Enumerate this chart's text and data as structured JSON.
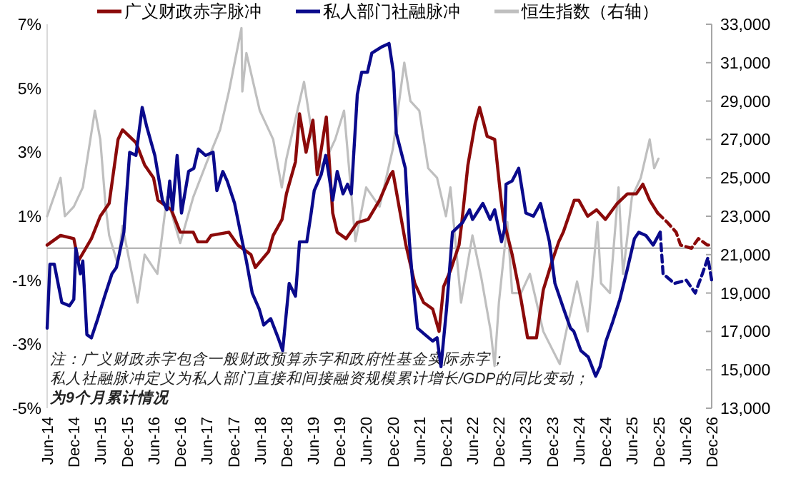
{
  "chart_data": {
    "type": "line",
    "legend": "top",
    "grid": false,
    "xlim": [
      "2014-06",
      "2026-12"
    ],
    "xticks": [
      {
        "value": "2014-06",
        "label": "Jun-14"
      },
      {
        "value": "2014-12",
        "label": "Dec-14"
      },
      {
        "value": "2015-06",
        "label": "Jun-15"
      },
      {
        "value": "2015-12",
        "label": "Dec-15"
      },
      {
        "value": "2016-06",
        "label": "Jun-16"
      },
      {
        "value": "2016-12",
        "label": "Dec-16"
      },
      {
        "value": "2017-06",
        "label": "Jun-17"
      },
      {
        "value": "2017-12",
        "label": "Dec-17"
      },
      {
        "value": "2018-06",
        "label": "Jun-18"
      },
      {
        "value": "2018-12",
        "label": "Dec-18"
      },
      {
        "value": "2019-06",
        "label": "Jun-19"
      },
      {
        "value": "2019-12",
        "label": "Dec-19"
      },
      {
        "value": "2020-06",
        "label": "Jun-20"
      },
      {
        "value": "2020-12",
        "label": "Dec-20"
      },
      {
        "value": "2021-06",
        "label": "Jun-21"
      },
      {
        "value": "2021-12",
        "label": "Dec-21"
      },
      {
        "value": "2022-06",
        "label": "Jun-22"
      },
      {
        "value": "2022-12",
        "label": "Dec-22"
      },
      {
        "value": "2023-06",
        "label": "Jun-23"
      },
      {
        "value": "2023-12",
        "label": "Dec-23"
      },
      {
        "value": "2024-06",
        "label": "Jun-24"
      },
      {
        "value": "2024-12",
        "label": "Dec-24"
      },
      {
        "value": "2025-06",
        "label": "Jun-25"
      },
      {
        "value": "2025-12",
        "label": "Dec-25"
      },
      {
        "value": "2026-06",
        "label": "Jun-26"
      },
      {
        "value": "2026-12",
        "label": "Dec-26"
      }
    ],
    "ylim": [
      -5,
      7
    ],
    "yticks": [
      {
        "value": -5,
        "label": "-5%"
      },
      {
        "value": -3,
        "label": "-3%"
      },
      {
        "value": -1,
        "label": "-1%"
      },
      {
        "value": 1,
        "label": "1%"
      },
      {
        "value": 3,
        "label": "3%"
      },
      {
        "value": 5,
        "label": "5%"
      },
      {
        "value": 7,
        "label": "7%"
      }
    ],
    "y2lim": [
      13000,
      33000
    ],
    "y2ticks": [
      {
        "value": 13000,
        "label": "13,000"
      },
      {
        "value": 15000,
        "label": "15,000"
      },
      {
        "value": 17000,
        "label": "17,000"
      },
      {
        "value": 19000,
        "label": "19,000"
      },
      {
        "value": 21000,
        "label": "21,000"
      },
      {
        "value": 23000,
        "label": "23,000"
      },
      {
        "value": 25000,
        "label": "25,000"
      },
      {
        "value": 27000,
        "label": "27,000"
      },
      {
        "value": 29000,
        "label": "29,000"
      },
      {
        "value": 31000,
        "label": "31,000"
      },
      {
        "value": 33000,
        "label": "33,000"
      }
    ],
    "ref_lines": [
      {
        "axis": "y",
        "value": 0,
        "color": "#a6a6a6"
      }
    ],
    "annotations": [
      "注：广义财政赤字包含一般财政预算赤字和政府性基金实际赤字；",
      "私人社融脉冲定义为私人部门直接和间接融资规模累计增长/GDP的同比变动；",
      "为9个月累计情况"
    ],
    "series": [
      {
        "name": "恒生指数（右轴）",
        "color": "#bfbfbf",
        "axis": "y2",
        "line_style": "solid",
        "x": [
          "2014-06",
          "2014-09",
          "2014-10",
          "2014-12",
          "2015-02",
          "2015-04-25",
          "2015-06",
          "2015-07-08",
          "2015-08",
          "2015-09-29",
          "2015-11",
          "2016-02-12",
          "2016-04",
          "2016-06-27",
          "2016-09",
          "2016-12",
          "2017-03",
          "2017-06",
          "2017-09",
          "2017-11",
          "2018-01-26",
          "2018-02",
          "2018-03",
          "2018-06",
          "2018-09",
          "2018-10-30",
          "2018-12",
          "2019-04",
          "2019-06",
          "2019-08",
          "2019-11",
          "2020-01",
          "2020-03-19",
          "2020-06",
          "2020-09",
          "2020-12",
          "2021-02-18",
          "2021-04",
          "2021-06",
          "2021-08",
          "2021-10",
          "2021-12",
          "2022-01",
          "2022-03-15",
          "2022-06",
          "2022-08",
          "2022-10-05",
          "2022-10-31",
          "2022-11-30",
          "2023-01-27",
          "2023-03",
          "2023-05",
          "2023-07",
          "2023-10",
          "2024-01-22",
          "2024-03",
          "2024-05-20",
          "2024-08",
          "2024-10-07",
          "2024-11",
          "2025-01",
          "2025-03",
          "2025-04",
          "2025-06",
          "2025-08",
          "2025-10",
          "2025-11",
          "2025-11-30"
        ],
        "values": [
          23000,
          25000,
          23000,
          23500,
          24500,
          28500,
          27000,
          23500,
          22000,
          20500,
          22500,
          18500,
          21000,
          20000,
          24000,
          21600,
          24000,
          25800,
          27500,
          29500,
          32800,
          29500,
          31500,
          28500,
          27000,
          24500,
          26000,
          30000,
          27000,
          25500,
          27000,
          28500,
          21700,
          24500,
          23500,
          26500,
          31000,
          29000,
          28500,
          25500,
          25000,
          23000,
          24500,
          18500,
          22000,
          19800,
          17000,
          15200,
          18500,
          22700,
          19000,
          19000,
          20000,
          17000,
          15300,
          16800,
          19600,
          17000,
          22700,
          19500,
          19000,
          24500,
          20000,
          24000,
          25000,
          27000,
          25500,
          26000
        ]
      },
      {
        "name": "广义财政赤字脉冲",
        "color": "#8b0a0a",
        "line_style": "solid",
        "x": [
          "2014-06",
          "2014-09",
          "2014-12",
          "2015-01",
          "2015-04",
          "2015-06",
          "2015-08",
          "2015-10",
          "2015-11",
          "2016-02",
          "2016-04",
          "2016-06",
          "2016-07",
          "2016-10",
          "2016-12",
          "2017-03",
          "2017-04",
          "2017-06",
          "2017-07",
          "2017-11",
          "2018-01",
          "2018-04",
          "2018-05",
          "2018-08",
          "2018-09",
          "2018-11",
          "2018-12",
          "2019-02",
          "2019-03",
          "2019-04-15",
          "2019-06",
          "2019-07",
          "2019-09",
          "2019-10-15",
          "2019-11-15",
          "2020-01-15",
          "2020-04",
          "2020-06-15",
          "2020-09",
          "2020-11-15",
          "2020-12",
          "2021-03",
          "2021-05",
          "2021-07",
          "2021-09",
          "2021-10-15",
          "2021-11-15",
          "2022-01",
          "2022-03",
          "2022-03-20",
          "2022-05",
          "2022-06-20",
          "2022-07-20",
          "2022-09-10",
          "2022-11",
          "2022-12-15",
          "2023-01",
          "2023-03",
          "2023-05",
          "2023-06-15",
          "2023-08-15",
          "2023-10",
          "2023-12",
          "2024-01-15",
          "2024-02-15",
          "2024-05",
          "2024-06",
          "2024-08",
          "2024-10",
          "2024-12",
          "2025-02-20",
          "2025-05",
          "2025-07",
          "2025-08-15",
          "2025-10",
          "2025-11-25"
        ],
        "values": [
          0.1,
          0.4,
          0.3,
          -0.4,
          0.3,
          1.0,
          1.4,
          3.4,
          3.7,
          3.3,
          2.6,
          2.2,
          1.5,
          1.2,
          0.5,
          0.5,
          0.2,
          0.2,
          0.4,
          0.5,
          0.1,
          -0.2,
          -0.6,
          -0.1,
          0.4,
          0.9,
          1.7,
          2.7,
          4.2,
          3.0,
          4.0,
          2.3,
          4.1,
          1.1,
          0.5,
          0.3,
          0.8,
          0.9,
          1.5,
          2.3,
          2.4,
          0.1,
          -1.1,
          -1.7,
          -1.9,
          -2.6,
          -1.2,
          -0.7,
          0.1,
          0.8,
          2.6,
          3.9,
          4.4,
          3.5,
          3.4,
          1.5,
          0.9,
          -0.2,
          -1.6,
          -2.8,
          -2.8,
          -1.3,
          -0.4,
          0.2,
          0.5,
          1.5,
          1.5,
          1.0,
          1.2,
          0.9,
          1.4,
          1.7,
          1.7,
          2.0,
          1.5,
          1.1
        ]
      },
      {
        "color": "#8b0a0a",
        "line_style": "dashed",
        "x": [
          "2025-11-25",
          "2026-02",
          "2026-04",
          "2026-05",
          "2026-07-15",
          "2026-09",
          "2026-11",
          "2026-12"
        ],
        "values": [
          1.1,
          0.8,
          0.5,
          0.1,
          0,
          0.3,
          0.1,
          0.1
        ]
      },
      {
        "name": "私人部门社融脉冲",
        "color": "#0a0a8c",
        "line_style": "solid",
        "x": [
          "2014-06",
          "2014-06-20",
          "2014-07-20",
          "2014-09-10",
          "2014-11",
          "2014-12",
          "2014-12-15",
          "2015-01-15",
          "2015-02",
          "2015-03",
          "2015-04",
          "2015-05-15",
          "2015-07",
          "2015-08-20",
          "2015-09-20",
          "2015-11-10",
          "2015-12-20",
          "2016-02",
          "2016-03-15",
          "2016-04-15",
          "2016-06-10",
          "2016-08",
          "2016-09",
          "2016-09-20",
          "2016-10-10",
          "2016-11-10",
          "2016-12-10",
          "2017-01-28",
          "2017-03-05",
          "2017-04-05",
          "2017-05-25",
          "2017-07-15",
          "2017-08-10",
          "2017-09-20",
          "2017-10-20",
          "2017-12-10",
          "2018-02",
          "2018-03",
          "2018-04-10",
          "2018-05-28",
          "2018-06-28",
          "2018-08-15",
          "2018-10-05",
          "2018-11-05",
          "2018-12-20",
          "2019-02",
          "2019-03",
          "2019-04-20",
          "2019-05-20",
          "2019-06-10",
          "2019-07-28",
          "2019-08-28",
          "2019-09-15",
          "2019-10-15",
          "2019-11-15",
          "2019-12-25",
          "2020-01-25",
          "2020-02-20",
          "2020-04",
          "2020-05",
          "2020-06-10",
          "2020-07-10",
          "2020-09-18",
          "2020-11-05",
          "2020-12-05",
          "2020-12-25",
          "2021-02-25",
          "2021-03-25",
          "2021-04-12",
          "2021-05-20",
          "2021-07-10",
          "2021-09",
          "2021-10",
          "2021-10-28",
          "2021-12-05",
          "2022-01-15",
          "2022-03-25",
          "2022-05-12",
          "2022-06-02",
          "2022-08-12",
          "2022-10",
          "2022-11",
          "2022-12-18",
          "2023-01-08",
          "2023-01-18",
          "2023-02-28",
          "2023-04-15",
          "2023-06-03",
          "2023-07-25",
          "2023-09-12",
          "2023-11-12",
          "2023-12-20",
          "2024-02-18",
          "2024-04-05",
          "2024-04-28",
          "2024-06-15",
          "2024-08-05",
          "2024-09-25",
          "2024-10-25",
          "2024-12-05",
          "2025-01-20",
          "2025-03-10",
          "2025-04-28",
          "2025-06-18",
          "2025-07-18",
          "2025-09-05",
          "2025-10-25",
          "2025-12-12"
        ],
        "values": [
          -2.5,
          -0.5,
          -0.5,
          -1.7,
          -1.8,
          -1.6,
          0.0,
          -0.8,
          -0.4,
          -2.7,
          -2.8,
          -2.2,
          -1.5,
          -0.8,
          -0.6,
          0.5,
          3.0,
          2.9,
          4.4,
          3.8,
          2.9,
          1.5,
          1.2,
          2.1,
          1.2,
          2.9,
          1.1,
          2.4,
          2.5,
          3.1,
          2.9,
          3.0,
          1.8,
          2.4,
          2.1,
          1.4,
          0.2,
          -0.4,
          -1.4,
          -1.9,
          -2.4,
          -2.2,
          -2.8,
          -3.2,
          -1.1,
          -1.5,
          0.2,
          0.2,
          1.1,
          1.8,
          2.3,
          2.9,
          2.4,
          1.5,
          2.4,
          1.7,
          2.0,
          1.7,
          4.8,
          5.5,
          5.5,
          6.1,
          6.3,
          6.4,
          5.5,
          3.6,
          2.5,
          0.2,
          -0.8,
          -2.5,
          -2.7,
          -2.9,
          -2.8,
          -3.7,
          -1.9,
          0.5,
          0.8,
          1.2,
          0.9,
          1.4,
          0.9,
          1.2,
          0.2,
          0.6,
          2.0,
          2.1,
          2.5,
          1.1,
          1.0,
          1.4,
          0.2,
          -1.1,
          -1.9,
          -2.5,
          -2.6,
          -3.2,
          -3.4,
          -4.0,
          -3.7,
          -2.9,
          -2.3,
          -1.6,
          -0.7,
          0.3,
          0.5,
          0.4,
          0.1,
          0.5
        ]
      },
      {
        "color": "#0a0a8c",
        "line_style": "dashed",
        "x": [
          "2025-12-12",
          "2026-01",
          "2026-03-20",
          "2026-06-10",
          "2026-08-10",
          "2026-09-28",
          "2026-11-05",
          "2026-12"
        ],
        "values": [
          0.5,
          -0.8,
          -1.1,
          -1.0,
          -1.4,
          -0.8,
          -0.3,
          -1.0
        ]
      }
    ]
  }
}
